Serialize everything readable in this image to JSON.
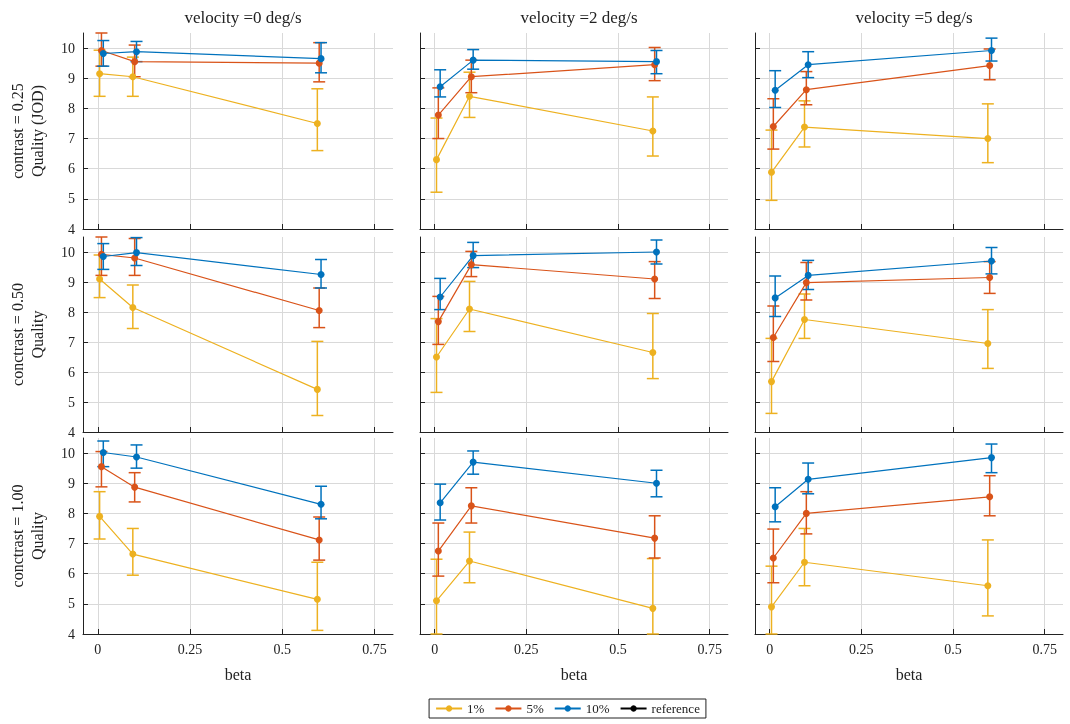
{
  "chart_data": [
    {
      "type": "line",
      "title": "velocity =0 deg/s",
      "ylabel": "contrast = 0.25\nQuality (JOD)",
      "xlim": [
        -0.04,
        0.8
      ],
      "xticks": [
        0,
        0.25,
        0.5,
        0.75
      ],
      "ylim": [
        4,
        10.5
      ],
      "yticks": [
        4,
        5,
        6,
        7,
        8,
        9,
        10
      ],
      "grid": true,
      "marker": "circle",
      "tick_labels": "y",
      "legend": false,
      "series": [
        {
          "color": "#edb120",
          "x": [
            0.005,
            0.095,
            0.595
          ],
          "values": [
            9.15,
            9.05,
            7.5
          ],
          "errors": [
            [
              8.4,
              9.93
            ],
            [
              8.4,
              9.7
            ],
            [
              6.6,
              8.65
            ]
          ]
        },
        {
          "color": "#d95319",
          "x": [
            0.01,
            0.1,
            0.6
          ],
          "values": [
            9.92,
            9.55,
            9.5
          ],
          "errors": [
            [
              9.4,
              10.5
            ],
            [
              9.05,
              10.1
            ],
            [
              8.88,
              10.18
            ]
          ]
        },
        {
          "color": "#0072bd",
          "x": [
            0.015,
            0.105,
            0.605
          ],
          "values": [
            9.82,
            9.88,
            9.65
          ],
          "errors": [
            [
              9.4,
              10.25
            ],
            [
              9.55,
              10.22
            ],
            [
              9.18,
              10.18
            ]
          ]
        }
      ]
    },
    {
      "type": "line",
      "title": "velocity =2 deg/s",
      "xlim": [
        -0.04,
        0.8
      ],
      "xticks": [
        0,
        0.25,
        0.5,
        0.75
      ],
      "ylim": [
        4,
        10.5
      ],
      "yticks": [
        4,
        5,
        6,
        7,
        8,
        9,
        10
      ],
      "grid": true,
      "marker": "circle",
      "tick_labels": false,
      "legend": false,
      "series": [
        {
          "color": "#edb120",
          "x": [
            0.005,
            0.095,
            0.595
          ],
          "values": [
            6.3,
            8.4,
            7.25
          ],
          "errors": [
            [
              5.22,
              7.68
            ],
            [
              7.7,
              9.2
            ],
            [
              6.42,
              8.38
            ]
          ]
        },
        {
          "color": "#d95319",
          "x": [
            0.01,
            0.1,
            0.6
          ],
          "values": [
            7.78,
            9.05,
            9.45
          ],
          "errors": [
            [
              7.0,
              8.68
            ],
            [
              8.52,
              9.6
            ],
            [
              8.92,
              10.02
            ]
          ]
        },
        {
          "color": "#0072bd",
          "x": [
            0.015,
            0.105,
            0.605
          ],
          "values": [
            8.72,
            9.6,
            9.55
          ],
          "errors": [
            [
              8.38,
              9.28
            ],
            [
              9.3,
              9.95
            ],
            [
              9.15,
              9.92
            ]
          ]
        }
      ]
    },
    {
      "type": "line",
      "title": "velocity =5 deg/s",
      "xlim": [
        -0.04,
        0.8
      ],
      "xticks": [
        0,
        0.25,
        0.5,
        0.75
      ],
      "ylim": [
        4,
        10.5
      ],
      "yticks": [
        4,
        5,
        6,
        7,
        8,
        9,
        10
      ],
      "grid": true,
      "marker": "circle",
      "tick_labels": false,
      "legend": false,
      "series": [
        {
          "color": "#edb120",
          "x": [
            0.005,
            0.095,
            0.595
          ],
          "values": [
            5.88,
            7.38,
            7.0
          ],
          "errors": [
            [
              4.95,
              7.28
            ],
            [
              6.72,
              8.25
            ],
            [
              6.2,
              8.15
            ]
          ]
        },
        {
          "color": "#d95319",
          "x": [
            0.01,
            0.1,
            0.6
          ],
          "values": [
            7.4,
            8.62,
            9.42
          ],
          "errors": [
            [
              6.65,
              8.32
            ],
            [
              8.12,
              9.22
            ],
            [
              8.95,
              9.97
            ]
          ]
        },
        {
          "color": "#0072bd",
          "x": [
            0.015,
            0.105,
            0.605
          ],
          "values": [
            8.6,
            9.45,
            9.92
          ],
          "errors": [
            [
              8.03,
              9.25
            ],
            [
              9.02,
              9.88
            ],
            [
              9.57,
              10.33
            ]
          ]
        }
      ]
    },
    {
      "type": "line",
      "ylabel": "conctrast = 0.50\nQuality",
      "xlim": [
        -0.04,
        0.8
      ],
      "xticks": [
        0,
        0.25,
        0.5,
        0.75
      ],
      "ylim": [
        4,
        10.5
      ],
      "yticks": [
        4,
        5,
        6,
        7,
        8,
        9,
        10
      ],
      "grid": true,
      "marker": "circle",
      "tick_labels": "y",
      "legend": false,
      "series": [
        {
          "color": "#edb120",
          "x": [
            0.005,
            0.095,
            0.595
          ],
          "values": [
            9.1,
            8.15,
            5.42
          ],
          "errors": [
            [
              8.48,
              9.9
            ],
            [
              7.45,
              8.9
            ],
            [
              4.55,
              7.02
            ]
          ]
        },
        {
          "color": "#d95319",
          "x": [
            0.01,
            0.1,
            0.6
          ],
          "values": [
            9.92,
            9.8,
            8.05
          ],
          "errors": [
            [
              9.22,
              10.5
            ],
            [
              9.22,
              10.45
            ],
            [
              7.48,
              8.8
            ]
          ]
        },
        {
          "color": "#0072bd",
          "x": [
            0.015,
            0.105,
            0.605
          ],
          "values": [
            9.85,
            9.98,
            9.25
          ],
          "errors": [
            [
              9.42,
              10.28
            ],
            [
              9.55,
              10.48
            ],
            [
              8.8,
              9.75
            ]
          ]
        }
      ]
    },
    {
      "type": "line",
      "xlim": [
        -0.04,
        0.8
      ],
      "xticks": [
        0,
        0.25,
        0.5,
        0.75
      ],
      "ylim": [
        4,
        10.5
      ],
      "yticks": [
        4,
        5,
        6,
        7,
        8,
        9,
        10
      ],
      "grid": true,
      "marker": "circle",
      "tick_labels": false,
      "legend": false,
      "series": [
        {
          "color": "#edb120",
          "x": [
            0.005,
            0.095,
            0.595
          ],
          "values": [
            6.5,
            8.1,
            6.65
          ],
          "errors": [
            [
              5.32,
              7.78
            ],
            [
              7.35,
              9.02
            ],
            [
              5.78,
              7.95
            ]
          ]
        },
        {
          "color": "#d95319",
          "x": [
            0.01,
            0.1,
            0.6
          ],
          "values": [
            7.68,
            9.58,
            9.1
          ],
          "errors": [
            [
              6.92,
              8.52
            ],
            [
              9.18,
              10.02
            ],
            [
              8.45,
              9.68
            ]
          ]
        },
        {
          "color": "#0072bd",
          "x": [
            0.015,
            0.105,
            0.605
          ],
          "values": [
            8.5,
            9.88,
            10.0
          ],
          "errors": [
            [
              8.08,
              9.12
            ],
            [
              9.48,
              10.32
            ],
            [
              9.6,
              10.4
            ]
          ]
        }
      ]
    },
    {
      "type": "line",
      "xlim": [
        -0.04,
        0.8
      ],
      "xticks": [
        0,
        0.25,
        0.5,
        0.75
      ],
      "ylim": [
        4,
        10.5
      ],
      "yticks": [
        4,
        5,
        6,
        7,
        8,
        9,
        10
      ],
      "grid": true,
      "marker": "circle",
      "tick_labels": false,
      "legend": false,
      "series": [
        {
          "color": "#edb120",
          "x": [
            0.005,
            0.095,
            0.595
          ],
          "values": [
            5.68,
            7.75,
            6.95
          ],
          "errors": [
            [
              4.62,
              7.12
            ],
            [
              7.12,
              8.6
            ],
            [
              6.12,
              8.08
            ]
          ]
        },
        {
          "color": "#d95319",
          "x": [
            0.01,
            0.1,
            0.6
          ],
          "values": [
            7.15,
            8.98,
            9.15
          ],
          "errors": [
            [
              6.35,
              8.2
            ],
            [
              8.4,
              9.65
            ],
            [
              8.62,
              9.68
            ]
          ]
        },
        {
          "color": "#0072bd",
          "x": [
            0.015,
            0.105,
            0.605
          ],
          "values": [
            8.47,
            9.22,
            9.7
          ],
          "errors": [
            [
              7.85,
              9.2
            ],
            [
              8.75,
              9.72
            ],
            [
              9.27,
              10.15
            ]
          ]
        }
      ]
    },
    {
      "type": "line",
      "ylabel": "conctrast = 1.00\nQuality",
      "xlabel": "beta",
      "xlim": [
        -0.04,
        0.8
      ],
      "xticks": [
        0,
        0.25,
        0.5,
        0.75
      ],
      "ylim": [
        4,
        10.5
      ],
      "yticks": [
        4,
        5,
        6,
        7,
        8,
        9,
        10
      ],
      "grid": true,
      "marker": "circle",
      "legend": false,
      "series": [
        {
          "color": "#edb120",
          "x": [
            0.005,
            0.095,
            0.595
          ],
          "values": [
            7.9,
            6.65,
            5.15
          ],
          "errors": [
            [
              7.15,
              8.72
            ],
            [
              5.95,
              7.5
            ],
            [
              4.12,
              6.38
            ]
          ]
        },
        {
          "color": "#d95319",
          "x": [
            0.01,
            0.1,
            0.6
          ],
          "values": [
            9.55,
            8.87,
            7.12
          ],
          "errors": [
            [
              8.88,
              10.05
            ],
            [
              8.38,
              9.35
            ],
            [
              6.45,
              7.88
            ]
          ]
        },
        {
          "color": "#0072bd",
          "x": [
            0.015,
            0.105,
            0.605
          ],
          "values": [
            10.02,
            9.87,
            8.3
          ],
          "errors": [
            [
              9.55,
              10.4
            ],
            [
              9.5,
              10.27
            ],
            [
              7.82,
              8.9
            ]
          ]
        }
      ]
    },
    {
      "type": "line",
      "xlabel": "beta",
      "xlim": [
        -0.04,
        0.8
      ],
      "xticks": [
        0,
        0.25,
        0.5,
        0.75
      ],
      "ylim": [
        4,
        10.5
      ],
      "yticks": [
        4,
        5,
        6,
        7,
        8,
        9,
        10
      ],
      "grid": true,
      "marker": "circle",
      "tick_labels": "x",
      "legend": "bottom",
      "series": [
        {
          "name": "1%",
          "color": "#edb120",
          "x": [
            0.005,
            0.095,
            0.595
          ],
          "values": [
            5.1,
            6.42,
            4.85
          ],
          "errors": [
            [
              4,
              6.48
            ],
            [
              5.7,
              7.38
            ],
            [
              4,
              6.5
            ]
          ]
        },
        {
          "name": "5%",
          "color": "#d95319",
          "x": [
            0.01,
            0.1,
            0.6
          ],
          "values": [
            6.75,
            8.25,
            7.18
          ],
          "errors": [
            [
              5.92,
              7.68
            ],
            [
              7.68,
              8.85
            ],
            [
              6.52,
              7.92
            ]
          ]
        },
        {
          "name": "10%",
          "color": "#0072bd",
          "x": [
            0.015,
            0.105,
            0.605
          ],
          "values": [
            8.35,
            9.7,
            9.0
          ],
          "errors": [
            [
              7.78,
              8.97
            ],
            [
              9.3,
              10.07
            ],
            [
              8.55,
              9.43
            ]
          ]
        },
        {
          "name": "reference",
          "color": "#000000",
          "values": [
            null,
            null,
            null
          ]
        }
      ]
    },
    {
      "type": "line",
      "xlabel": "beta",
      "xlim": [
        -0.04,
        0.8
      ],
      "xticks": [
        0,
        0.25,
        0.5,
        0.75
      ],
      "ylim": [
        4,
        10.5
      ],
      "yticks": [
        4,
        5,
        6,
        7,
        8,
        9,
        10
      ],
      "grid": true,
      "marker": "circle",
      "tick_labels": "x",
      "legend": false,
      "series": [
        {
          "color": "#edb120",
          "x": [
            0.005,
            0.095,
            0.595
          ],
          "values": [
            4.9,
            6.38,
            5.6
          ],
          "errors": [
            [
              4,
              6.25
            ],
            [
              5.6,
              7.5
            ],
            [
              4.6,
              7.12
            ]
          ]
        },
        {
          "color": "#d95319",
          "x": [
            0.01,
            0.1,
            0.6
          ],
          "values": [
            6.52,
            8.0,
            8.55
          ],
          "errors": [
            [
              5.7,
              7.48
            ],
            [
              7.32,
              8.72
            ],
            [
              7.92,
              9.25
            ]
          ]
        },
        {
          "color": "#0072bd",
          "x": [
            0.015,
            0.105,
            0.605
          ],
          "values": [
            8.22,
            9.13,
            9.85
          ],
          "errors": [
            [
              7.72,
              8.85
            ],
            [
              8.65,
              9.67
            ],
            [
              9.35,
              10.3
            ]
          ]
        }
      ]
    }
  ]
}
